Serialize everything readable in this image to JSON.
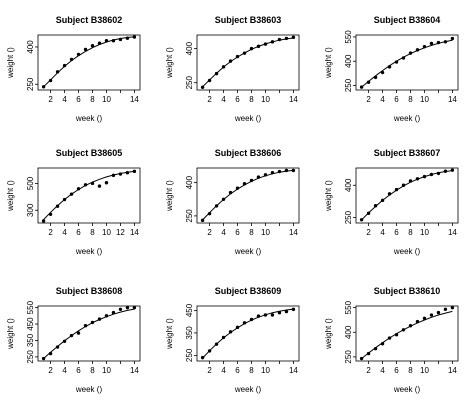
{
  "chart_data": [
    {
      "type": "scatter",
      "title": "Subject B38602",
      "xlabel": "week ()",
      "ylabel": "weight ()",
      "x": [
        1,
        2,
        3,
        4,
        5,
        6,
        7,
        8,
        9,
        10,
        11,
        12,
        13,
        14
      ],
      "y": [
        240,
        265,
        300,
        325,
        350,
        370,
        390,
        405,
        415,
        425,
        425,
        430,
        435,
        440
      ],
      "fit": [
        240,
        268,
        296,
        322,
        345,
        365,
        382,
        397,
        410,
        420,
        428,
        434,
        438,
        441
      ],
      "xlim": [
        0.2,
        14.8
      ],
      "ylim": [
        227,
        448
      ],
      "xticks": [
        2,
        4,
        6,
        8,
        10,
        12,
        14
      ],
      "xtick_labels": [
        "2",
        "4",
        "6",
        "8",
        "10",
        "",
        "14"
      ],
      "yticks": [
        250,
        400
      ],
      "ytick_labels": [
        "250",
        "400"
      ]
    },
    {
      "type": "scatter",
      "title": "Subject B38603",
      "xlabel": "week ()",
      "ylabel": "weight ()",
      "x": [
        1,
        2,
        3,
        4,
        5,
        6,
        7,
        8,
        9,
        10,
        11,
        12,
        13,
        14
      ],
      "y": [
        230,
        260,
        290,
        320,
        345,
        365,
        380,
        400,
        410,
        420,
        430,
        440,
        445,
        450
      ],
      "fit": [
        232,
        263,
        292,
        319,
        343,
        363,
        381,
        397,
        410,
        421,
        430,
        437,
        443,
        447
      ],
      "xlim": [
        0.2,
        14.8
      ],
      "ylim": [
        218,
        460
      ],
      "xticks": [
        2,
        4,
        6,
        8,
        10,
        12,
        14
      ],
      "xtick_labels": [
        "2",
        "4",
        "6",
        "8",
        "10",
        "",
        "14"
      ],
      "yticks": [
        250,
        400
      ],
      "ytick_labels": [
        "250",
        "400"
      ]
    },
    {
      "type": "scatter",
      "title": "Subject B38604",
      "xlabel": "week ()",
      "ylabel": "weight ()",
      "x": [
        1,
        2,
        3,
        4,
        5,
        6,
        7,
        8,
        9,
        10,
        11,
        12,
        13,
        14
      ],
      "y": [
        240,
        270,
        300,
        330,
        365,
        395,
        420,
        450,
        470,
        490,
        510,
        515,
        520,
        540
      ],
      "fit": [
        240,
        275,
        310,
        342,
        372,
        400,
        425,
        447,
        466,
        483,
        498,
        511,
        521,
        529
      ],
      "xlim": [
        0.2,
        14.8
      ],
      "ylim": [
        222,
        562
      ],
      "xticks": [
        2,
        4,
        6,
        8,
        10,
        12,
        14
      ],
      "xtick_labels": [
        "2",
        "4",
        "6",
        "8",
        "10",
        "",
        "14"
      ],
      "yticks": [
        250,
        400,
        550
      ],
      "ytick_labels": [
        "250",
        "400",
        "550"
      ]
    },
    {
      "type": "scatter",
      "title": "Subject B38605",
      "xlabel": "week ()",
      "ylabel": "weight ()",
      "x": [
        1,
        2,
        3,
        4,
        5,
        6,
        7,
        8,
        9,
        10,
        11,
        12,
        13,
        14
      ],
      "y": [
        220,
        270,
        330,
        380,
        420,
        460,
        490,
        500,
        480,
        505,
        560,
        570,
        580,
        590
      ],
      "fit": [
        230,
        285,
        335,
        380,
        420,
        455,
        485,
        510,
        531,
        549,
        563,
        574,
        583,
        590
      ],
      "xlim": [
        0.2,
        14.8
      ],
      "ylim": [
        205,
        615
      ],
      "xticks": [
        2,
        4,
        6,
        8,
        10,
        12,
        14
      ],
      "xtick_labels": [
        "2",
        "4",
        "6",
        "8",
        "10",
        "12",
        "14"
      ],
      "yticks": [
        300,
        500
      ],
      "ytick_labels": [
        "300",
        "500"
      ]
    },
    {
      "type": "scatter",
      "title": "Subject B38606",
      "xlabel": "week ()",
      "ylabel": "weight ()",
      "x": [
        1,
        2,
        3,
        4,
        5,
        6,
        7,
        8,
        9,
        10,
        11,
        12,
        13,
        14
      ],
      "y": [
        230,
        260,
        295,
        325,
        355,
        375,
        395,
        410,
        425,
        435,
        445,
        450,
        455,
        455
      ],
      "fit": [
        232,
        265,
        296,
        324,
        349,
        371,
        390,
        406,
        420,
        431,
        440,
        447,
        452,
        455
      ],
      "xlim": [
        0.2,
        14.8
      ],
      "ylim": [
        218,
        466
      ],
      "xticks": [
        2,
        4,
        6,
        8,
        10,
        12,
        14
      ],
      "xtick_labels": [
        "2",
        "4",
        "6",
        "8",
        "10",
        "",
        "14"
      ],
      "yticks": [
        250,
        400
      ],
      "ytick_labels": [
        "250",
        "400"
      ]
    },
    {
      "type": "scatter",
      "title": "Subject B38607",
      "xlabel": "week ()",
      "ylabel": "weight ()",
      "x": [
        1,
        2,
        3,
        4,
        5,
        6,
        7,
        8,
        9,
        10,
        11,
        12,
        13,
        14
      ],
      "y": [
        240,
        270,
        305,
        330,
        360,
        380,
        400,
        420,
        430,
        440,
        450,
        455,
        465,
        470
      ],
      "fit": [
        240,
        272,
        302,
        330,
        355,
        377,
        397,
        414,
        428,
        440,
        450,
        458,
        464,
        468
      ],
      "xlim": [
        0.2,
        14.8
      ],
      "ylim": [
        225,
        480
      ],
      "xticks": [
        2,
        4,
        6,
        8,
        10,
        12,
        14
      ],
      "xtick_labels": [
        "2",
        "4",
        "6",
        "8",
        "10",
        "",
        "14"
      ],
      "yticks": [
        250,
        400
      ],
      "ytick_labels": [
        "250",
        "400"
      ]
    },
    {
      "type": "scatter",
      "title": "Subject B38608",
      "xlabel": "week ()",
      "ylabel": "weight ()",
      "x": [
        1,
        2,
        3,
        4,
        5,
        6,
        7,
        8,
        9,
        10,
        11,
        12,
        13,
        14
      ],
      "y": [
        240,
        270,
        310,
        345,
        380,
        395,
        440,
        460,
        480,
        500,
        520,
        540,
        550,
        550
      ],
      "fit": [
        240,
        278,
        314,
        348,
        380,
        409,
        435,
        458,
        478,
        495,
        510,
        523,
        533,
        541
      ],
      "xlim": [
        0.2,
        14.8
      ],
      "ylim": [
        225,
        560
      ],
      "xticks": [
        2,
        4,
        6,
        8,
        10,
        12,
        14
      ],
      "xtick_labels": [
        "2",
        "4",
        "6",
        "8",
        "10",
        "",
        "14"
      ],
      "yticks": [
        250,
        350,
        450,
        550
      ],
      "ytick_labels": [
        "250",
        "350",
        "450",
        "550"
      ]
    },
    {
      "type": "scatter",
      "title": "Subject B38609",
      "xlabel": "week ()",
      "ylabel": "weight ()",
      "x": [
        1,
        2,
        3,
        4,
        5,
        6,
        7,
        8,
        9,
        10,
        11,
        12,
        13,
        14
      ],
      "y": [
        240,
        270,
        300,
        330,
        355,
        375,
        395,
        410,
        425,
        430,
        430,
        440,
        445,
        455
      ],
      "fit": [
        238,
        271,
        301,
        328,
        352,
        373,
        391,
        407,
        420,
        431,
        440,
        447,
        452,
        456
      ],
      "xlim": [
        0.2,
        14.8
      ],
      "ylim": [
        225,
        470
      ],
      "xticks": [
        2,
        4,
        6,
        8,
        10,
        12,
        14
      ],
      "xtick_labels": [
        "2",
        "4",
        "6",
        "8",
        "10",
        "",
        "14"
      ],
      "yticks": [
        250,
        350,
        450
      ],
      "ytick_labels": [
        "250",
        "350",
        "450"
      ]
    },
    {
      "type": "scatter",
      "title": "Subject B38610",
      "xlabel": "week ()",
      "ylabel": "weight ()",
      "x": [
        1,
        2,
        3,
        4,
        5,
        6,
        7,
        8,
        9,
        10,
        11,
        12,
        13,
        14
      ],
      "y": [
        240,
        270,
        300,
        330,
        365,
        385,
        415,
        440,
        465,
        485,
        505,
        520,
        540,
        550
      ],
      "fit": [
        240,
        274,
        306,
        336,
        365,
        391,
        415,
        437,
        457,
        475,
        491,
        505,
        517,
        527
      ],
      "xlim": [
        0.2,
        14.8
      ],
      "ylim": [
        225,
        560
      ],
      "xticks": [
        2,
        4,
        6,
        8,
        10,
        12,
        14
      ],
      "xtick_labels": [
        "2",
        "4",
        "6",
        "8",
        "10",
        "",
        "14"
      ],
      "yticks": [
        250,
        400,
        550
      ],
      "ytick_labels": [
        "250",
        "400",
        "550"
      ]
    }
  ]
}
